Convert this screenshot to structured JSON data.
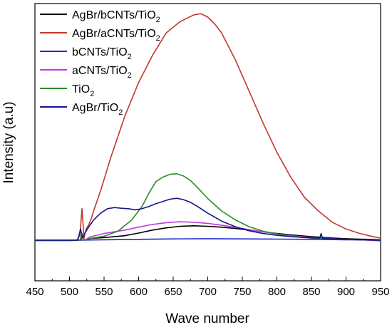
{
  "chart_data": {
    "type": "line",
    "title": "",
    "xlabel": "Wave number",
    "ylabel": "Intensity (a.u)",
    "xlim": [
      450,
      950
    ],
    "ylim": [
      -0.18,
      1.05
    ],
    "y_ticks_shown": false,
    "x_ticks": [
      "450",
      "500",
      "550",
      "600",
      "650",
      "700",
      "750",
      "800",
      "850",
      "900",
      "950"
    ],
    "legend": {
      "placement": "top-left",
      "entries": [
        {
          "base": "AgBr/bCNTs/TiO",
          "sub": "2"
        },
        {
          "base": "AgBr/aCNTs/TiO",
          "sub": "2"
        },
        {
          "base": "bCNTs/TiO",
          "sub": "2"
        },
        {
          "base": "aCNTs/TiO",
          "sub": "2"
        },
        {
          "base": "TiO",
          "sub": "2"
        },
        {
          "base": "AgBr/TiO",
          "sub": "2"
        }
      ]
    },
    "series": [
      {
        "name": "AgBr/bCNTs/TiO2",
        "color": "#000000",
        "x": [
          450,
          500,
          510,
          516,
          519,
          522,
          530,
          550,
          580,
          600,
          620,
          640,
          660,
          680,
          700,
          720,
          740,
          760,
          780,
          800,
          820,
          850,
          880,
          900,
          920,
          950
        ],
        "y": [
          0.0,
          0.0,
          0.0,
          0.0,
          0.02,
          0.0,
          0.008,
          0.012,
          0.02,
          0.032,
          0.045,
          0.055,
          0.062,
          0.064,
          0.062,
          0.058,
          0.052,
          0.045,
          0.038,
          0.03,
          0.024,
          0.016,
          0.01,
          0.007,
          0.005,
          0.002
        ]
      },
      {
        "name": "AgBr/aCNTs/TiO2",
        "color": "#c0392b",
        "x": [
          450,
          500,
          510,
          515,
          518,
          521,
          524,
          528,
          532,
          536,
          545,
          560,
          580,
          600,
          620,
          640,
          660,
          680,
          690,
          700,
          710,
          720,
          740,
          760,
          780,
          800,
          820,
          840,
          860,
          880,
          900,
          920,
          940,
          950
        ],
        "y": [
          0.0,
          0.0,
          0.0,
          0.02,
          0.14,
          0.01,
          0.05,
          0.07,
          0.1,
          0.14,
          0.22,
          0.37,
          0.55,
          0.7,
          0.82,
          0.92,
          0.97,
          1.0,
          1.005,
          0.99,
          0.96,
          0.92,
          0.8,
          0.66,
          0.52,
          0.39,
          0.28,
          0.19,
          0.13,
          0.08,
          0.05,
          0.03,
          0.015,
          0.01
        ]
      },
      {
        "name": "bCNTs/TiO2",
        "color": "#1f2bd0",
        "x": [
          450,
          500,
          550,
          600,
          650,
          700,
          750,
          800,
          850,
          900,
          950
        ],
        "y": [
          0.0,
          0.0,
          0.002,
          0.004,
          0.006,
          0.007,
          0.006,
          0.005,
          0.004,
          0.002,
          0.001
        ]
      },
      {
        "name": "aCNTs/TiO2",
        "color": "#c039e0",
        "x": [
          450,
          500,
          515,
          518,
          522,
          530,
          550,
          580,
          600,
          620,
          640,
          660,
          680,
          700,
          720,
          740,
          760,
          780,
          800,
          820,
          850,
          880,
          900,
          920,
          950
        ],
        "y": [
          -0.002,
          -0.002,
          0.0,
          0.02,
          0.0,
          0.015,
          0.03,
          0.045,
          0.058,
          0.07,
          0.078,
          0.082,
          0.08,
          0.075,
          0.067,
          0.057,
          0.047,
          0.037,
          0.028,
          0.02,
          0.012,
          0.007,
          0.004,
          0.002,
          -0.003
        ]
      },
      {
        "name": "TiO2",
        "color": "#2e8b2e",
        "x": [
          450,
          500,
          515,
          518,
          521,
          530,
          550,
          570,
          590,
          605,
          615,
          625,
          635,
          645,
          655,
          665,
          675,
          685,
          700,
          720,
          740,
          760,
          780,
          800,
          820,
          850,
          880,
          900,
          920,
          950
        ],
        "y": [
          0.0,
          0.0,
          0.0,
          0.03,
          0.0,
          0.008,
          0.018,
          0.04,
          0.09,
          0.15,
          0.21,
          0.26,
          0.28,
          0.292,
          0.295,
          0.285,
          0.265,
          0.235,
          0.185,
          0.13,
          0.09,
          0.06,
          0.04,
          0.028,
          0.018,
          0.01,
          0.006,
          0.004,
          0.002,
          0.0
        ]
      },
      {
        "name": "AgBr/TiO2",
        "color": "#15158a",
        "x": [
          450,
          500,
          512,
          516,
          519,
          522,
          528,
          535,
          545,
          555,
          565,
          575,
          585,
          595,
          605,
          615,
          625,
          635,
          645,
          655,
          665,
          675,
          685,
          700,
          720,
          740,
          760,
          780,
          800,
          820,
          850,
          862,
          864,
          866,
          880,
          900,
          920,
          950
        ],
        "y": [
          0.0,
          0.0,
          0.0,
          0.05,
          0.01,
          0.03,
          0.06,
          0.09,
          0.12,
          0.14,
          0.145,
          0.142,
          0.14,
          0.135,
          0.14,
          0.15,
          0.162,
          0.172,
          0.182,
          0.186,
          0.18,
          0.168,
          0.15,
          0.12,
          0.085,
          0.06,
          0.042,
          0.03,
          0.022,
          0.016,
          0.01,
          0.01,
          0.03,
          0.008,
          0.006,
          0.004,
          0.002,
          0.0
        ]
      }
    ]
  }
}
